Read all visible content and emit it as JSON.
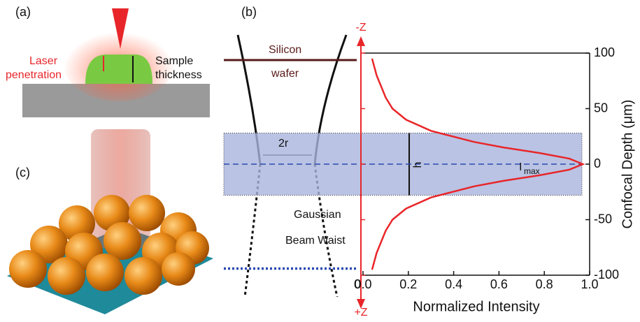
{
  "chart_data": {
    "type": "line",
    "x_label": "Normalized Intensity",
    "y_label": "Confocal Depth (μm)",
    "xlim": [
      0,
      1.0
    ],
    "xticks": [
      {
        "value": 0,
        "label": "0.0"
      },
      0.2,
      0.4,
      0.6,
      0.8,
      {
        "value": 1.0,
        "label": "1.0"
      }
    ],
    "ylim": [
      -100,
      100
    ],
    "yticks": [
      -100,
      -50,
      0,
      50,
      100
    ],
    "series": [
      {
        "color": "#e8262a",
        "x": [
          0.04,
          0.06,
          0.1,
          0.13,
          0.19,
          0.3,
          0.49,
          0.62,
          0.78,
          0.91,
          0.97,
          0.91,
          0.78,
          0.62,
          0.49,
          0.3,
          0.19,
          0.13,
          0.1,
          0.06,
          0.04
        ],
        "values": [
          -95,
          -80,
          -60,
          -50,
          -40,
          -30,
          -20,
          -15,
          -10,
          -5,
          0,
          5,
          10,
          15,
          20,
          30,
          40,
          50,
          60,
          80,
          95
        ]
      }
    ],
    "band": [
      -28,
      28
    ],
    "reference_lines": [
      0,
      -94
    ],
    "annotations": [
      "(a)",
      "(b)",
      "(c)",
      "Laser",
      "penetration",
      "Sample",
      "thickness",
      "Silicon",
      "wafer",
      "2r",
      "h",
      "I",
      "max",
      "Gaussian",
      "Beam Waist",
      "-Z",
      "+Z",
      "0"
    ]
  }
}
